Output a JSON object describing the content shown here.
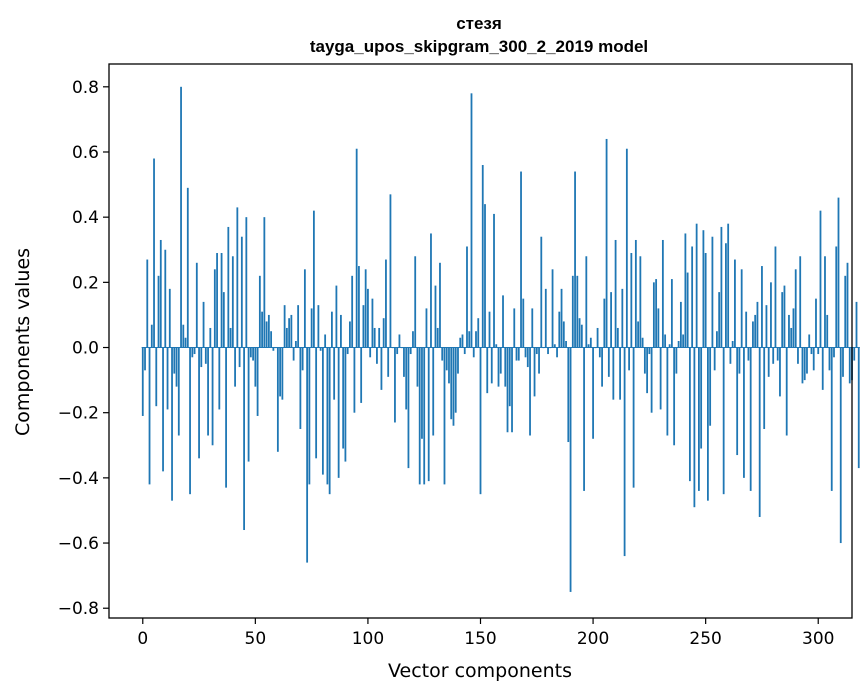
{
  "chart_data": {
    "type": "bar",
    "title": "стезя",
    "subtitle": "tayga_upos_skipgram_300_2_2019 model",
    "xlabel": "Vector components",
    "ylabel": "Components values",
    "xlim": [
      -15,
      315
    ],
    "ylim": [
      -0.83,
      0.87
    ],
    "xticks": [
      0,
      50,
      100,
      150,
      200,
      250,
      300
    ],
    "xtick_labels": [
      "0",
      "50",
      "100",
      "150",
      "200",
      "250",
      "300"
    ],
    "yticks": [
      -0.8,
      -0.6,
      -0.4,
      -0.2,
      0.0,
      0.2,
      0.4,
      0.6,
      0.8
    ],
    "ytick_labels": [
      "−0.8",
      "−0.6",
      "−0.4",
      "−0.2",
      "0.0",
      "0.2",
      "0.4",
      "0.6",
      "0.8"
    ],
    "grid": false,
    "bar_color": "#1f77b4",
    "values": [
      -0.21,
      -0.07,
      0.27,
      -0.42,
      0.07,
      0.58,
      -0.18,
      0.22,
      0.33,
      -0.38,
      0.3,
      -0.19,
      0.18,
      -0.47,
      -0.08,
      -0.12,
      -0.27,
      0.8,
      0.07,
      0.03,
      0.49,
      -0.45,
      -0.03,
      -0.02,
      0.26,
      -0.34,
      -0.06,
      0.14,
      -0.05,
      -0.27,
      0.06,
      -0.3,
      0.24,
      0.29,
      -0.19,
      0.29,
      0.17,
      -0.43,
      0.37,
      0.06,
      0.28,
      -0.12,
      0.43,
      -0.06,
      0.34,
      -0.56,
      0.4,
      -0.35,
      -0.03,
      -0.04,
      -0.12,
      -0.21,
      0.22,
      0.11,
      0.4,
      0.08,
      0.1,
      0.05,
      -0.01,
      0.0,
      -0.32,
      -0.15,
      -0.16,
      0.13,
      0.06,
      0.09,
      0.1,
      -0.04,
      0.02,
      0.13,
      -0.25,
      -0.07,
      0.24,
      -0.66,
      -0.42,
      0.12,
      0.42,
      -0.34,
      0.13,
      -0.01,
      -0.39,
      0.04,
      -0.42,
      -0.45,
      0.11,
      -0.16,
      0.19,
      -0.4,
      0.1,
      -0.31,
      -0.35,
      -0.02,
      0.08,
      0.22,
      -0.2,
      0.61,
      0.25,
      -0.17,
      0.13,
      0.24,
      0.18,
      -0.03,
      0.15,
      0.06,
      -0.05,
      0.06,
      -0.13,
      0.09,
      0.27,
      -0.09,
      0.47,
      0.0,
      -0.23,
      -0.02,
      0.04,
      0.0,
      -0.09,
      -0.19,
      -0.37,
      -0.02,
      0.05,
      0.28,
      -0.12,
      -0.42,
      -0.28,
      -0.42,
      0.12,
      -0.41,
      0.35,
      -0.27,
      0.19,
      0.06,
      0.26,
      -0.04,
      -0.42,
      -0.07,
      -0.11,
      -0.22,
      -0.24,
      -0.2,
      -0.08,
      0.03,
      0.04,
      -0.02,
      0.31,
      0.05,
      0.78,
      -0.03,
      0.05,
      0.09,
      -0.45,
      0.56,
      0.44,
      -0.14,
      0.11,
      -0.11,
      0.41,
      0.01,
      -0.12,
      -0.08,
      0.16,
      -0.12,
      -0.26,
      -0.18,
      -0.26,
      0.12,
      -0.04,
      -0.04,
      0.54,
      0.15,
      -0.03,
      -0.06,
      -0.27,
      0.12,
      -0.15,
      -0.02,
      -0.08,
      0.34,
      0.0,
      0.18,
      -0.02,
      0.0,
      0.24,
      0.01,
      -0.03,
      0.11,
      0.18,
      0.08,
      0.02,
      -0.29,
      -0.75,
      0.22,
      0.54,
      0.22,
      0.09,
      0.07,
      -0.44,
      0.28,
      0.01,
      0.03,
      -0.28,
      0.0,
      0.06,
      -0.03,
      -0.12,
      0.15,
      0.64,
      -0.09,
      0.17,
      -0.16,
      0.33,
      0.06,
      -0.16,
      0.18,
      -0.64,
      0.61,
      -0.07,
      0.29,
      -0.43,
      0.33,
      0.08,
      0.28,
      0.03,
      -0.08,
      -0.14,
      -0.02,
      -0.2,
      0.2,
      0.21,
      0.12,
      -0.19,
      0.33,
      0.04,
      -0.27,
      0.01,
      0.21,
      -0.3,
      -0.08,
      0.02,
      0.14,
      0.04,
      0.35,
      0.23,
      -0.41,
      0.31,
      -0.49,
      0.38,
      -0.44,
      -0.31,
      0.36,
      0.29,
      -0.47,
      -0.24,
      0.34,
      -0.07,
      0.05,
      0.17,
      0.37,
      -0.45,
      0.32,
      0.38,
      -0.05,
      0.02,
      0.27,
      -0.33,
      -0.08,
      0.24,
      -0.4,
      0.11,
      -0.04,
      -0.44,
      0.08,
      0.1,
      0.14,
      -0.52,
      0.25,
      -0.25,
      0.13,
      -0.09,
      0.2,
      -0.05,
      0.31,
      -0.04,
      -0.15,
      0.17,
      0.19,
      -0.27,
      0.1,
      0.06,
      0.12,
      0.24,
      -0.05,
      0.28,
      -0.11,
      -0.1,
      -0.08,
      0.04,
      -0.02,
      -0.07,
      0.15,
      -0.02,
      0.42,
      -0.13,
      0.28,
      0.1,
      -0.07,
      -0.44,
      -0.03,
      0.31,
      0.46,
      -0.6,
      -0.09,
      0.22,
      0.26,
      -0.11,
      -0.1,
      -0.04,
      0.14,
      -0.37
    ]
  }
}
